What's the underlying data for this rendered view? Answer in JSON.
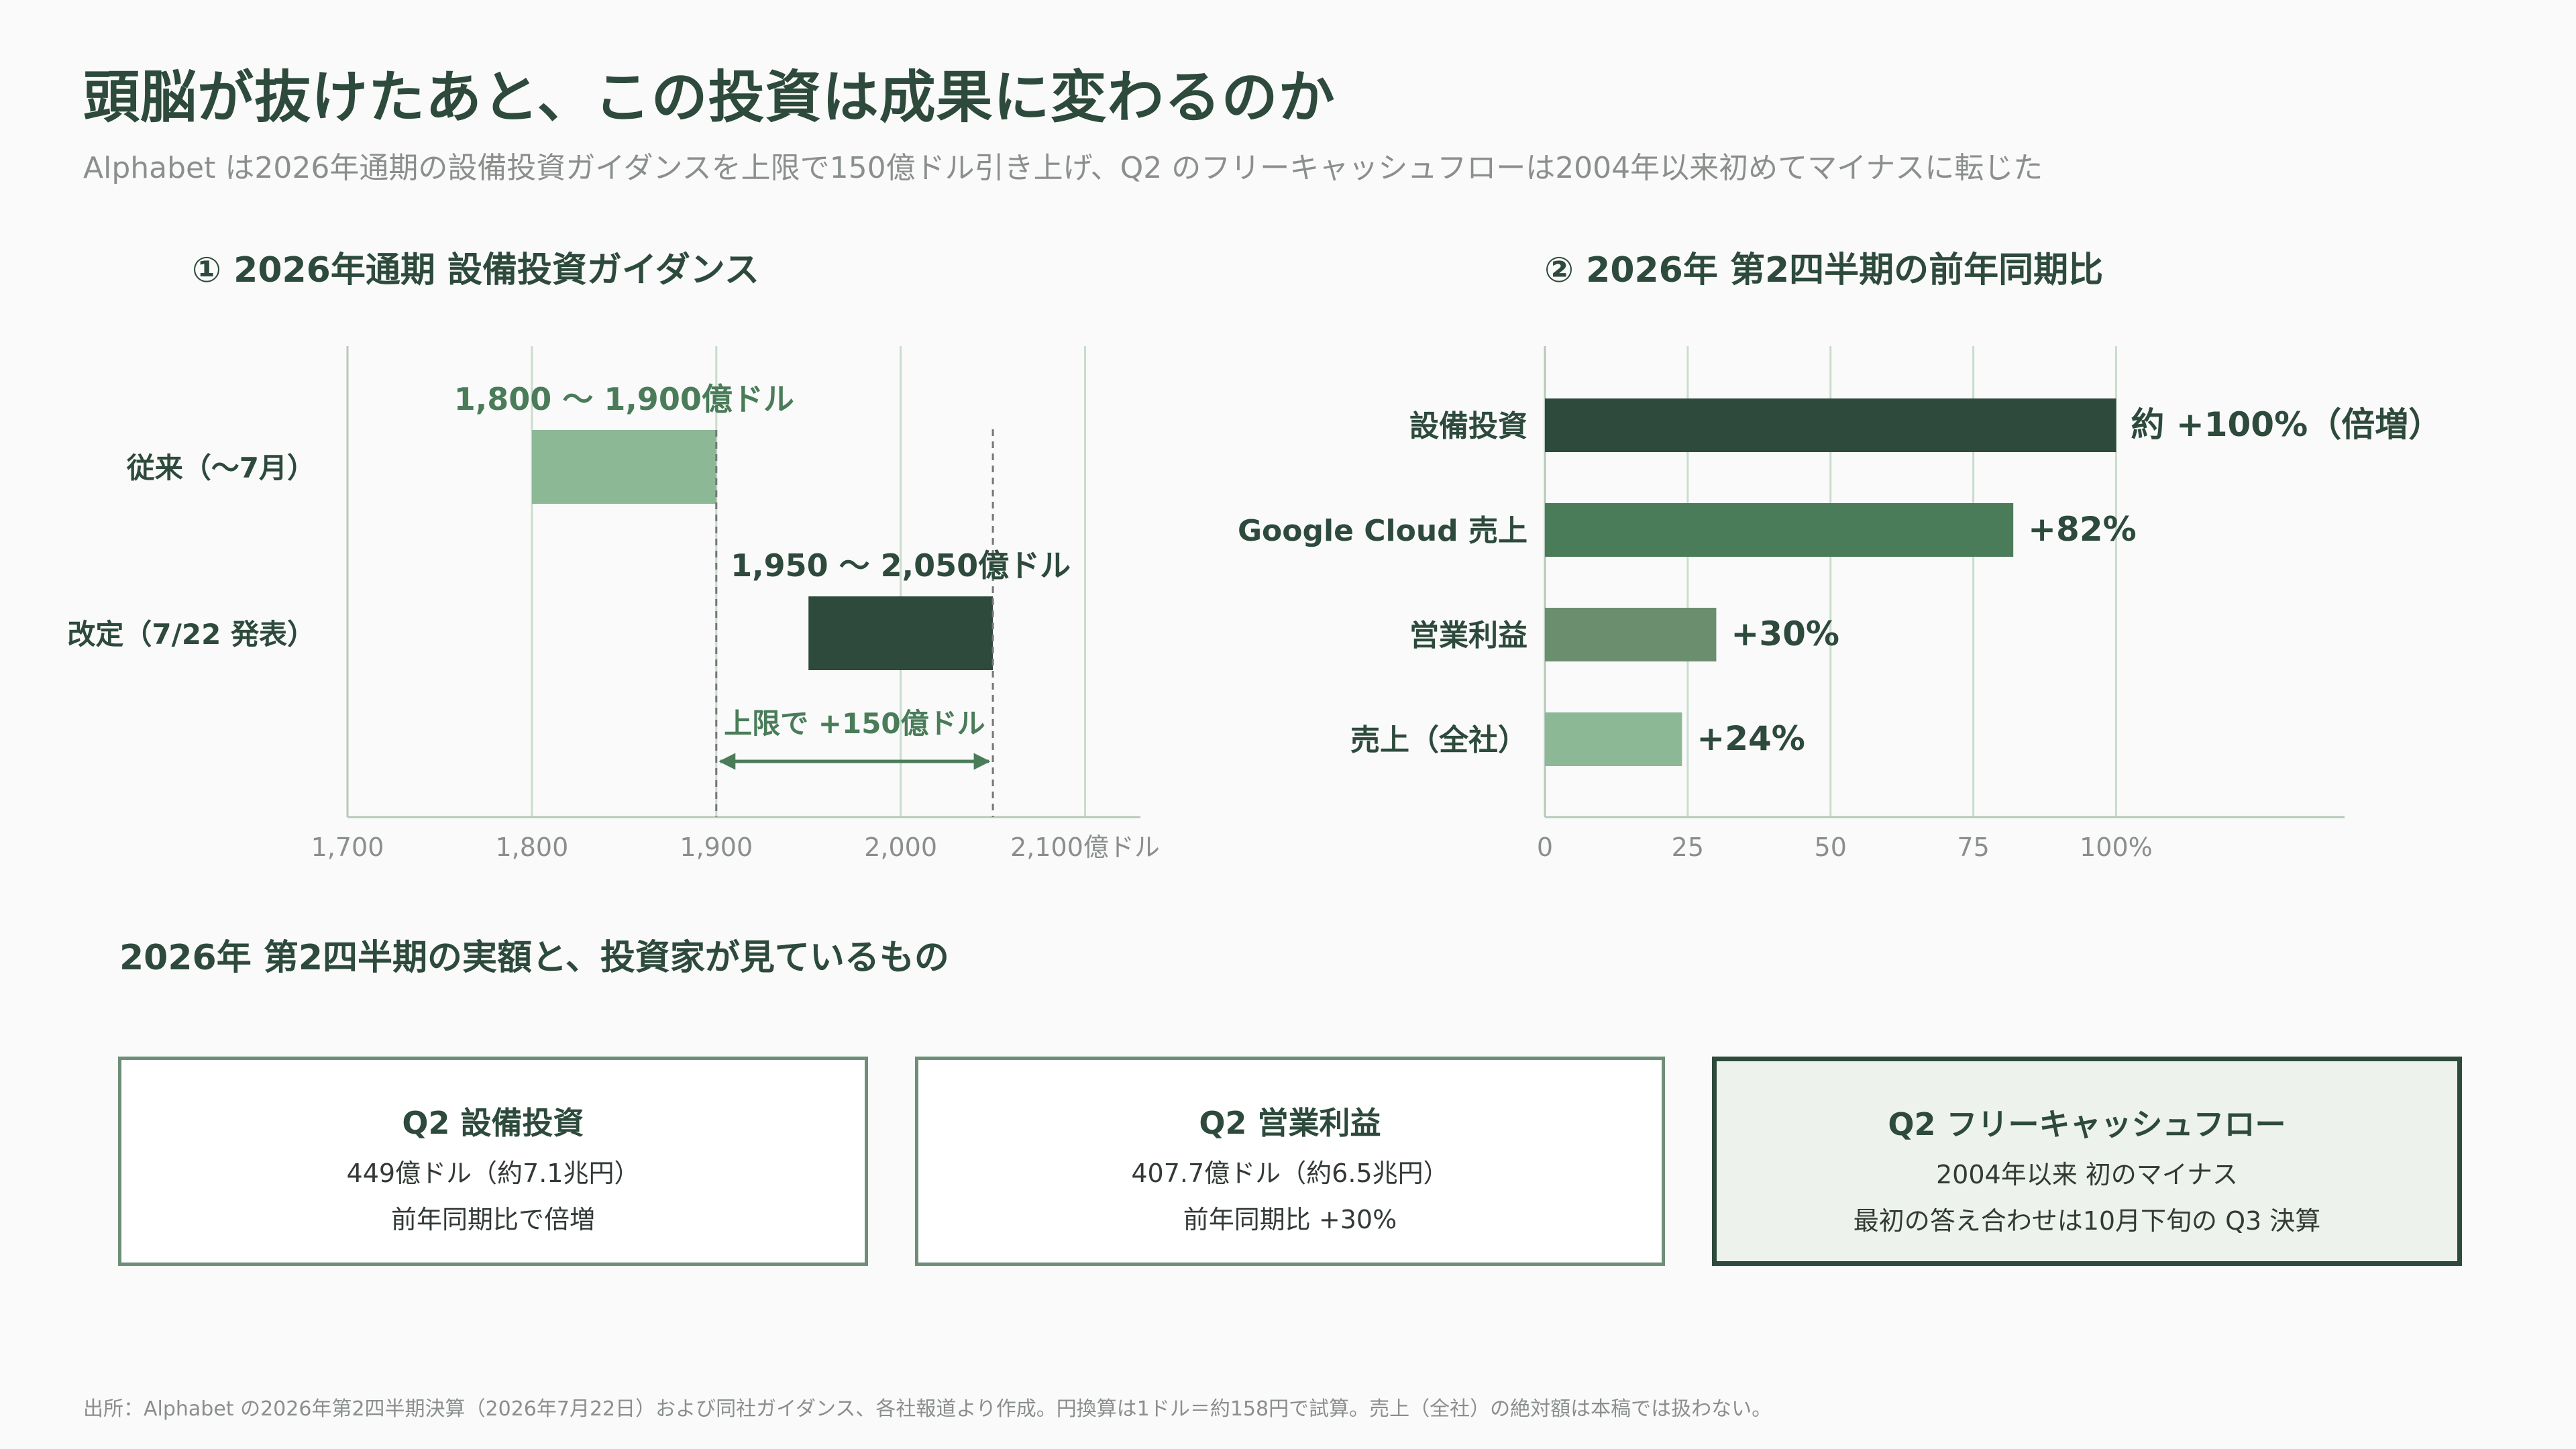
{
  "header": {
    "title": "頭脳が抜けたあと、この投資は成果に変わるのか",
    "subtitle": "Alphabet は2026年通期の設備投資ガイダンスを上限で150億ドル引き上げ、Q2 のフリーキャッシュフローは2004年以来初めてマイナスに転じた"
  },
  "panels": {
    "left_title": "① 2026年通期 設備投資ガイダンス",
    "right_title": "② 2026年 第2四半期の前年同期比"
  },
  "colors": {
    "dark": "#2d4a3c",
    "mid": "#4a7c59",
    "muted": "#6b8e6f",
    "light": "#8db896",
    "grid": "#c9dccd",
    "axis_text": "#8a8f8c"
  },
  "chart_data": [
    {
      "type": "bar",
      "orientation": "horizontal-range",
      "title": "① 2026年通期 設備投資ガイダンス",
      "categories": [
        "従来（〜7月）",
        "改定（7/22 発表）"
      ],
      "ranges": [
        [
          1800,
          1900
        ],
        [
          1950,
          2050
        ]
      ],
      "range_labels": [
        "1,800 〜 1,900億ドル",
        "1,950 〜 2,050億ドル"
      ],
      "xlim": [
        1700,
        2130
      ],
      "x_ticks": [
        1700,
        1800,
        1900,
        2000,
        2100
      ],
      "x_tick_labels": [
        "1,700",
        "1,800",
        "1,900",
        "2,000",
        "2,100億ドル"
      ],
      "annotation": {
        "text": "上限で +150億ドル",
        "from": 1900,
        "to": 2050
      },
      "grid": true
    },
    {
      "type": "bar",
      "orientation": "horizontal",
      "title": "② 2026年 第2四半期の前年同期比",
      "categories": [
        "設備投資",
        "Google Cloud 売上",
        "営業利益",
        "売上（全社）"
      ],
      "values": [
        100,
        82,
        30,
        24
      ],
      "value_labels": [
        "約 +100%（倍増）",
        "+82%",
        "+30%",
        "+24%"
      ],
      "xlim": [
        0,
        140
      ],
      "x_ticks": [
        0,
        25,
        50,
        75,
        100
      ],
      "x_tick_labels": [
        "0",
        "25",
        "50",
        "75",
        "100%"
      ],
      "grid": true
    }
  ],
  "section": {
    "title": "2026年 第2四半期の実額と、投資家が見ているもの"
  },
  "cards": [
    {
      "title": "Q2 設備投資",
      "line1": "449億ドル（約7.1兆円）",
      "line2": "前年同期比で倍増"
    },
    {
      "title": "Q2 営業利益",
      "line1": "407.7億ドル（約6.5兆円）",
      "line2": "前年同期比 +30%"
    },
    {
      "title": "Q2 フリーキャッシュフロー",
      "line1": "2004年以来 初のマイナス",
      "line2": "最初の答え合わせは10月下旬の Q3 決算"
    }
  ],
  "footnote": "出所：Alphabet の2026年第2四半期決算（2026年7月22日）および同社ガイダンス、各社報道より作成。円換算は1ドル＝約158円で試算。売上（全社）の絶対額は本稿では扱わない。"
}
